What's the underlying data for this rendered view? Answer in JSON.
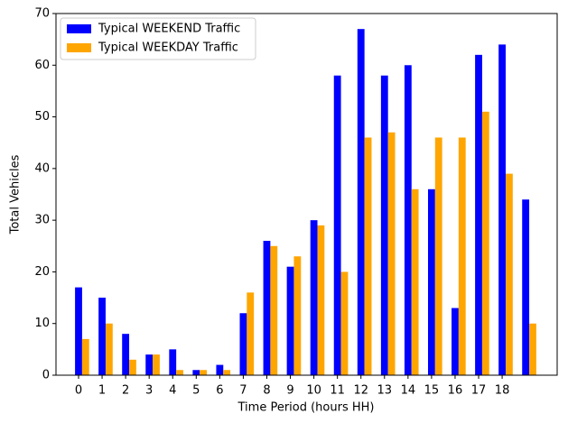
{
  "chart_data": {
    "type": "bar",
    "categories": [
      "0",
      "1",
      "2",
      "3",
      "4",
      "5",
      "6",
      "7",
      "8",
      "9",
      "10",
      "11",
      "12",
      "13",
      "14",
      "15",
      "16",
      "17",
      "18",
      null
    ],
    "series": [
      {
        "name": "Typical WEEKEND Traffic",
        "color": "blue",
        "values": [
          17,
          15,
          8,
          4,
          5,
          1,
          2,
          12,
          26,
          21,
          30,
          58,
          67,
          58,
          60,
          36,
          13,
          62,
          64,
          34
        ]
      },
      {
        "name": "Typical WEEKDAY Traffic",
        "color": "orange",
        "values": [
          7,
          10,
          3,
          4,
          1,
          1,
          1,
          16,
          25,
          23,
          29,
          20,
          46,
          47,
          36,
          46,
          46,
          51,
          39,
          10
        ]
      }
    ],
    "x_label": "Time Period (hours HH)",
    "y_label": "Total Vehicles",
    "ylim": [
      0,
      70
    ],
    "yticks": [
      0,
      10,
      20,
      30,
      40,
      50,
      60,
      70
    ],
    "legend": "upper left"
  }
}
